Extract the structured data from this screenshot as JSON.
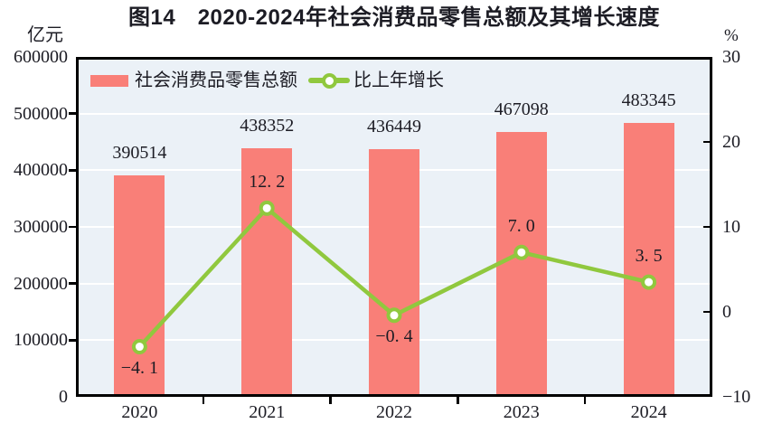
{
  "chart_data": {
    "type": "combo",
    "title": "图14　2020-2024年社会消费品零售总额及其增长速度",
    "categories": [
      "2020",
      "2021",
      "2022",
      "2023",
      "2024"
    ],
    "series": [
      {
        "name": "社会消费品零售总额",
        "type": "bar",
        "axis": "left",
        "values": [
          390514,
          438352,
          436449,
          467098,
          483345
        ],
        "value_labels": [
          "390514",
          "438352",
          "436449",
          "467098",
          "483345"
        ],
        "color": "#f97f78"
      },
      {
        "name": "比上年增长",
        "type": "line",
        "axis": "right",
        "values": [
          -4.1,
          12.2,
          -0.4,
          7.0,
          3.5
        ],
        "value_labels": [
          "−4. 1",
          "12. 2",
          "−0. 4",
          "7. 0",
          "3. 5"
        ],
        "label_placement": [
          "below",
          "above",
          "below",
          "above",
          "above"
        ],
        "color": "#90c83e",
        "marker": "circle-white-fill"
      }
    ],
    "left_axis": {
      "unit": "亿元",
      "min": 0,
      "max": 600000,
      "step": 100000,
      "tick_labels": [
        "600000",
        "500000",
        "400000",
        "300000",
        "200000",
        "100000",
        "0"
      ]
    },
    "right_axis": {
      "unit": "%",
      "min": -10,
      "max": 30,
      "step": 10,
      "tick_labels": [
        "30",
        "20",
        "10",
        "0",
        "−10"
      ]
    },
    "grid": "horizontal-white",
    "plot_bg": "#ebf1f7",
    "legend_position": "top-left-inside"
  },
  "colors": {
    "bar": "#f97f78",
    "line": "#90c83e",
    "plot_bg": "#ebf1f7",
    "grid": "#ffffff",
    "axis": "#000000",
    "text": "#1c1c24"
  }
}
